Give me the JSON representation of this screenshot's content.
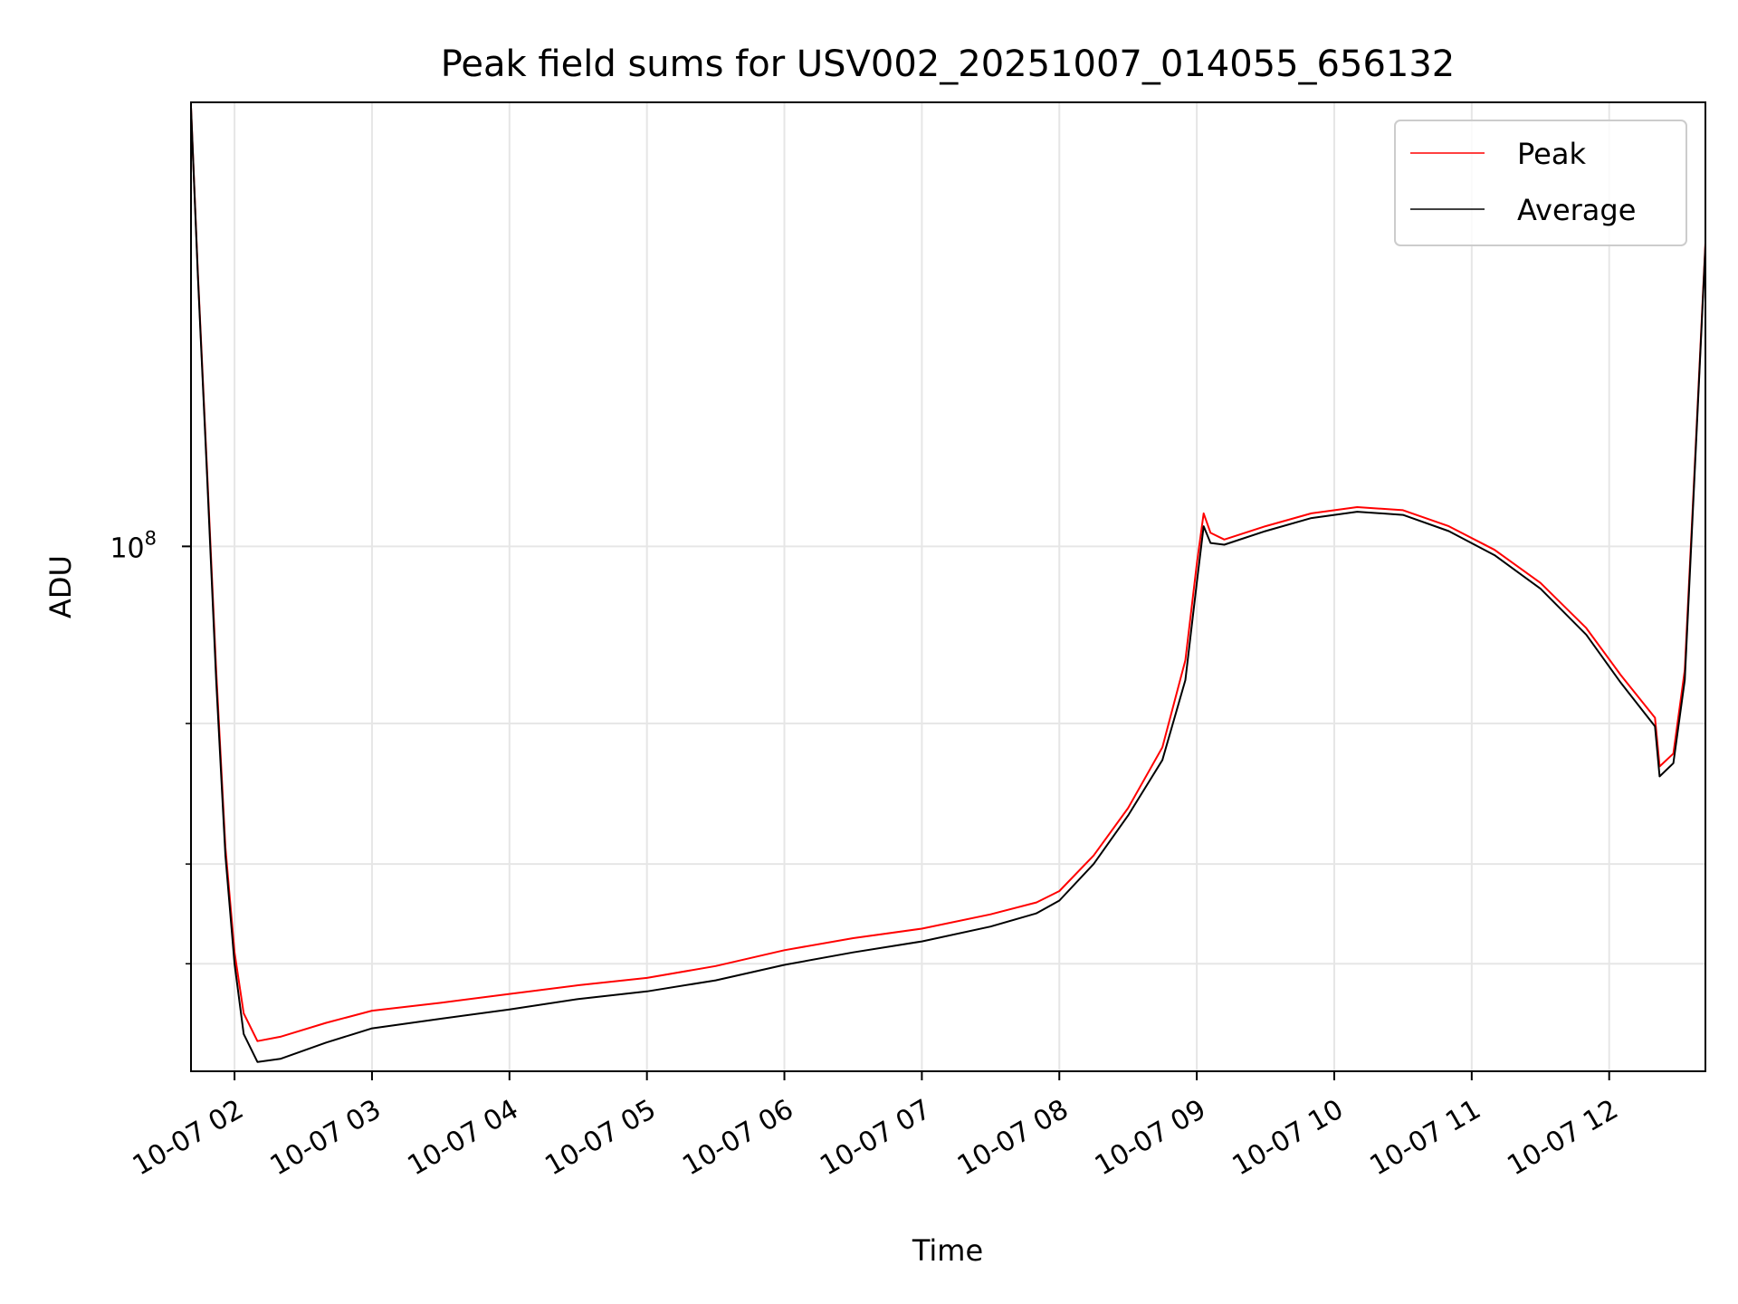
{
  "chart_data": {
    "type": "line",
    "title": "Peak field sums for USV002_20251007_014055_656132",
    "xlabel": "Time",
    "ylabel": "ADU",
    "xlim": [
      "2025-10-07 01:41",
      "2025-10-07 12:42"
    ],
    "ylim": [
      22000000,
      360000000
    ],
    "yscale": "log",
    "grid": true,
    "legend_position": "top-right",
    "x_ticks": [
      {
        "value": "2025-10-07 02:00",
        "label": "10-07 02"
      },
      {
        "value": "2025-10-07 03:00",
        "label": "10-07 03"
      },
      {
        "value": "2025-10-07 04:00",
        "label": "10-07 04"
      },
      {
        "value": "2025-10-07 05:00",
        "label": "10-07 05"
      },
      {
        "value": "2025-10-07 06:00",
        "label": "10-07 06"
      },
      {
        "value": "2025-10-07 07:00",
        "label": "10-07 07"
      },
      {
        "value": "2025-10-07 08:00",
        "label": "10-07 08"
      },
      {
        "value": "2025-10-07 09:00",
        "label": "10-07 09"
      },
      {
        "value": "2025-10-07 10:00",
        "label": "10-07 10"
      },
      {
        "value": "2025-10-07 11:00",
        "label": "10-07 11"
      },
      {
        "value": "2025-10-07 12:00",
        "label": "10-07 12"
      }
    ],
    "y_major_ticks": [
      {
        "value": 100000000,
        "label_base": "10",
        "label_exp": "8"
      }
    ],
    "y_minor_ticks": [
      30000000,
      40000000,
      60000000
    ],
    "series": [
      {
        "name": "Peak",
        "color": "#ff0000",
        "points": [
          [
            "2025-10-07 01:41",
            355000000
          ],
          [
            "2025-10-07 01:44",
            220000000
          ],
          [
            "2025-10-07 01:48",
            125000000
          ],
          [
            "2025-10-07 01:52",
            70000000
          ],
          [
            "2025-10-07 01:56",
            42000000
          ],
          [
            "2025-10-07 02:00",
            31000000
          ],
          [
            "2025-10-07 02:04",
            26000000
          ],
          [
            "2025-10-07 02:10",
            24000000
          ],
          [
            "2025-10-07 02:20",
            24300000
          ],
          [
            "2025-10-07 02:40",
            25300000
          ],
          [
            "2025-10-07 03:00",
            26200000
          ],
          [
            "2025-10-07 03:30",
            26800000
          ],
          [
            "2025-10-07 04:00",
            27500000
          ],
          [
            "2025-10-07 04:30",
            28200000
          ],
          [
            "2025-10-07 05:00",
            28800000
          ],
          [
            "2025-10-07 05:30",
            29800000
          ],
          [
            "2025-10-07 06:00",
            31200000
          ],
          [
            "2025-10-07 06:30",
            32300000
          ],
          [
            "2025-10-07 07:00",
            33200000
          ],
          [
            "2025-10-07 07:30",
            34600000
          ],
          [
            "2025-10-07 07:50",
            35800000
          ],
          [
            "2025-10-07 08:00",
            37000000
          ],
          [
            "2025-10-07 08:15",
            41000000
          ],
          [
            "2025-10-07 08:30",
            47000000
          ],
          [
            "2025-10-07 08:45",
            56000000
          ],
          [
            "2025-10-07 08:55",
            72000000
          ],
          [
            "2025-10-07 09:00",
            95000000
          ],
          [
            "2025-10-07 09:03",
            110000000
          ],
          [
            "2025-10-07 09:06",
            104000000
          ],
          [
            "2025-10-07 09:12",
            102000000
          ],
          [
            "2025-10-07 09:30",
            106000000
          ],
          [
            "2025-10-07 09:50",
            110000000
          ],
          [
            "2025-10-07 10:10",
            112000000
          ],
          [
            "2025-10-07 10:30",
            111000000
          ],
          [
            "2025-10-07 10:50",
            106000000
          ],
          [
            "2025-10-07 11:10",
            99000000
          ],
          [
            "2025-10-07 11:30",
            90000000
          ],
          [
            "2025-10-07 11:50",
            79000000
          ],
          [
            "2025-10-07 12:05",
            69000000
          ],
          [
            "2025-10-07 12:20",
            61000000
          ],
          [
            "2025-10-07 12:22",
            53000000
          ],
          [
            "2025-10-07 12:28",
            55000000
          ],
          [
            "2025-10-07 12:33",
            70000000
          ],
          [
            "2025-10-07 12:37",
            120000000
          ],
          [
            "2025-10-07 12:42",
            240000000
          ]
        ]
      },
      {
        "name": "Average",
        "color": "#000000",
        "points": [
          [
            "2025-10-07 01:41",
            355000000
          ],
          [
            "2025-10-07 01:44",
            218000000
          ],
          [
            "2025-10-07 01:48",
            123000000
          ],
          [
            "2025-10-07 01:52",
            68000000
          ],
          [
            "2025-10-07 01:56",
            41000000
          ],
          [
            "2025-10-07 02:00",
            30000000
          ],
          [
            "2025-10-07 02:04",
            24500000
          ],
          [
            "2025-10-07 02:10",
            22600000
          ],
          [
            "2025-10-07 02:20",
            22800000
          ],
          [
            "2025-10-07 02:40",
            23900000
          ],
          [
            "2025-10-07 03:00",
            24900000
          ],
          [
            "2025-10-07 03:30",
            25600000
          ],
          [
            "2025-10-07 04:00",
            26300000
          ],
          [
            "2025-10-07 04:30",
            27100000
          ],
          [
            "2025-10-07 05:00",
            27700000
          ],
          [
            "2025-10-07 05:30",
            28600000
          ],
          [
            "2025-10-07 06:00",
            29900000
          ],
          [
            "2025-10-07 06:30",
            31000000
          ],
          [
            "2025-10-07 07:00",
            32000000
          ],
          [
            "2025-10-07 07:30",
            33400000
          ],
          [
            "2025-10-07 07:50",
            34700000
          ],
          [
            "2025-10-07 08:00",
            36000000
          ],
          [
            "2025-10-07 08:15",
            40000000
          ],
          [
            "2025-10-07 08:30",
            46000000
          ],
          [
            "2025-10-07 08:45",
            54000000
          ],
          [
            "2025-10-07 08:55",
            68000000
          ],
          [
            "2025-10-07 09:00",
            90000000
          ],
          [
            "2025-10-07 09:03",
            106000000
          ],
          [
            "2025-10-07 09:06",
            101000000
          ],
          [
            "2025-10-07 09:12",
            100500000
          ],
          [
            "2025-10-07 09:30",
            104500000
          ],
          [
            "2025-10-07 09:50",
            108500000
          ],
          [
            "2025-10-07 10:10",
            110500000
          ],
          [
            "2025-10-07 10:30",
            109500000
          ],
          [
            "2025-10-07 10:50",
            104500000
          ],
          [
            "2025-10-07 11:10",
            97500000
          ],
          [
            "2025-10-07 11:30",
            88500000
          ],
          [
            "2025-10-07 11:50",
            77500000
          ],
          [
            "2025-10-07 12:05",
            67500000
          ],
          [
            "2025-10-07 12:20",
            59500000
          ],
          [
            "2025-10-07 12:22",
            51500000
          ],
          [
            "2025-10-07 12:28",
            53500000
          ],
          [
            "2025-10-07 12:33",
            68000000
          ],
          [
            "2025-10-07 12:37",
            118000000
          ],
          [
            "2025-10-07 12:42",
            238000000
          ]
        ]
      }
    ]
  }
}
